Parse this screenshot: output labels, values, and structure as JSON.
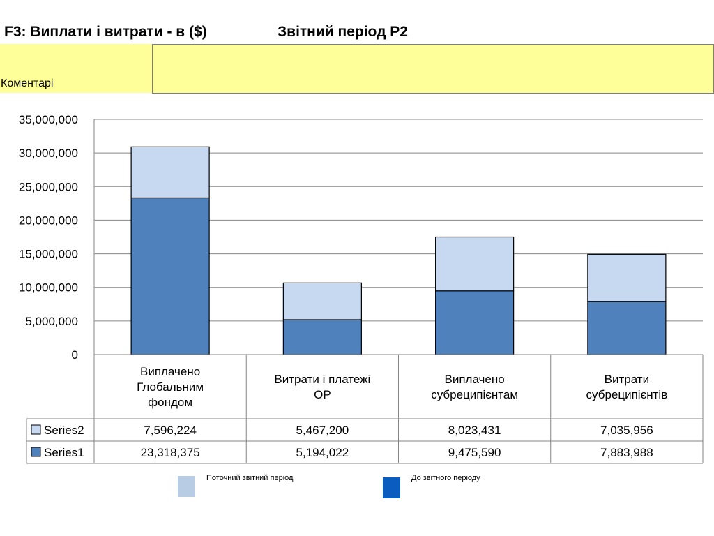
{
  "header": {
    "title": "F3: Виплати і витрати - в ($)",
    "period": "Звітний період P2",
    "comment_label": "Коментарі",
    "comment_label_suffix": ":",
    "comment_text": ""
  },
  "chart_data": {
    "type": "bar",
    "stacked": true,
    "categories": [
      [
        "Виплачено",
        "Глобальним",
        "фондом"
      ],
      [
        "Витрати і платежі",
        "ОР"
      ],
      [
        "Виплачено",
        "субреципієнтам"
      ],
      [
        "Витрати",
        "субреципієнтів"
      ]
    ],
    "series": [
      {
        "name": "Series1",
        "values": [
          23318375,
          5194022,
          9475590,
          7883988
        ],
        "labels": [
          "23,318,375",
          "5,194,022",
          "9,475,590",
          "7,883,988"
        ],
        "color": "#4f81bd"
      },
      {
        "name": "Series2",
        "values": [
          7596224,
          5467200,
          8023431,
          7035956
        ],
        "labels": [
          "7,596,224",
          "5,467,200",
          "8,023,431",
          "7,035,956"
        ],
        "color": "#c6d9f1"
      }
    ],
    "yticks": [
      "0",
      "5,000,000",
      "10,000,000",
      "15,000,000",
      "20,000,000",
      "25,000,000",
      "30,000,000",
      "35,000,000"
    ],
    "ylim": [
      0,
      35000000
    ],
    "grid": true,
    "data_table": true
  },
  "legend": {
    "current": {
      "label": "Поточний звітний період",
      "color": "#b8cce4"
    },
    "cumulative": {
      "label": "До звітного періоду",
      "color": "#0a5cbf"
    }
  }
}
